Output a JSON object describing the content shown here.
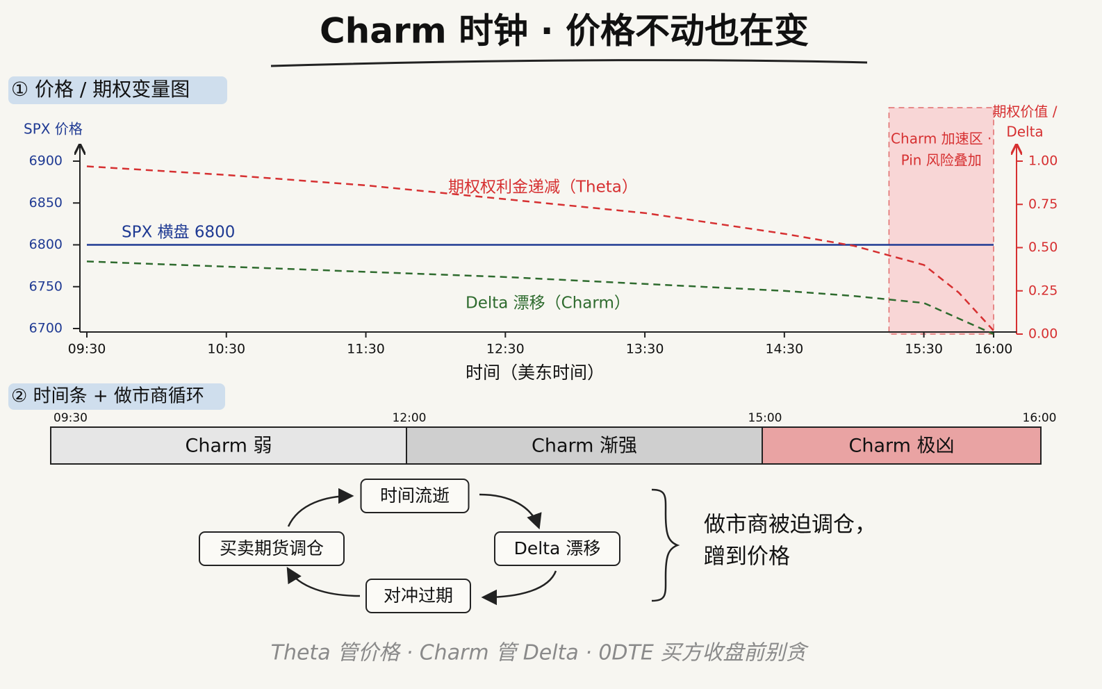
{
  "title": "Charm 时钟 · 价格不动也在变",
  "section1": "① 价格 / 期权变量图",
  "chart_data": {
    "type": "line",
    "x_label": "时间（美东时间）",
    "y_label": "SPX 价格",
    "y2_label": [
      "期权价值 /",
      "Delta"
    ],
    "x": [
      "09:30",
      "10:30",
      "11:30",
      "12:30",
      "13:30",
      "14:30",
      "15:00",
      "15:30",
      "15:45",
      "16:00"
    ],
    "xlim": [
      "09:30",
      "16:00"
    ],
    "xticks": [
      "09:30",
      "10:30",
      "11:30",
      "12:30",
      "13:30",
      "14:30",
      "15:30",
      "16:00"
    ],
    "ylim": [
      6700,
      6900
    ],
    "yticks": [
      6700,
      6750,
      6800,
      6850,
      6900
    ],
    "y2lim": [
      0,
      1
    ],
    "y2ticks": [
      {
        "value": 0,
        "label": "0.00"
      },
      {
        "value": 0.25,
        "label": "0.25"
      },
      {
        "value": 0.5,
        "label": "0.50"
      },
      {
        "value": 0.75,
        "label": "0.75"
      },
      {
        "value": 1,
        "label": "1.00"
      }
    ],
    "series": [
      {
        "name": "SPX 横盘 6800",
        "color": "#1f3a93",
        "style": "solid",
        "values": [
          6800,
          6800,
          6800,
          6800,
          6800,
          6800,
          6800,
          6800,
          6800,
          6800
        ]
      },
      {
        "name": "期权权利金递减（Theta）",
        "color": "#d63031",
        "style": "dashed",
        "axis": "y2",
        "values": [
          0.97,
          0.92,
          0.86,
          0.78,
          0.7,
          0.58,
          0.51,
          0.4,
          0.24,
          0.02
        ]
      },
      {
        "name": "Delta 漂移（Charm）",
        "color": "#2e6b2e",
        "style": "dashed",
        "axis": "y2",
        "values": [
          0.42,
          0.39,
          0.36,
          0.33,
          0.29,
          0.25,
          0.22,
          0.18,
          0.09,
          0
        ]
      }
    ],
    "highlight": {
      "from": "15:15",
      "to": "16:00",
      "label": [
        "Charm 加速区 ·",
        "Pin 风险叠加"
      ],
      "color": "#f8d6d6"
    }
  },
  "timeline": {
    "section": "② 时间条 + 做市商循环",
    "ticks": [
      "09:30",
      "12:00",
      "15:00",
      "16:00"
    ],
    "segments": [
      {
        "label": "Charm 弱",
        "color": "#e6e6e6"
      },
      {
        "label": "Charm 渐强",
        "color": "#cfcfcf"
      },
      {
        "label": "Charm 极凶",
        "color": "#e9a3a3"
      }
    ]
  },
  "cycle": {
    "nodes": [
      "时间流逝",
      "Delta 漂移",
      "对冲过期",
      "买卖期货调仓"
    ],
    "note": [
      "做市商被迫调仓，",
      "蹭到价格"
    ]
  },
  "footer": "Theta 管价格 · Charm 管 Delta · 0DTE 买方收盘前别贪"
}
